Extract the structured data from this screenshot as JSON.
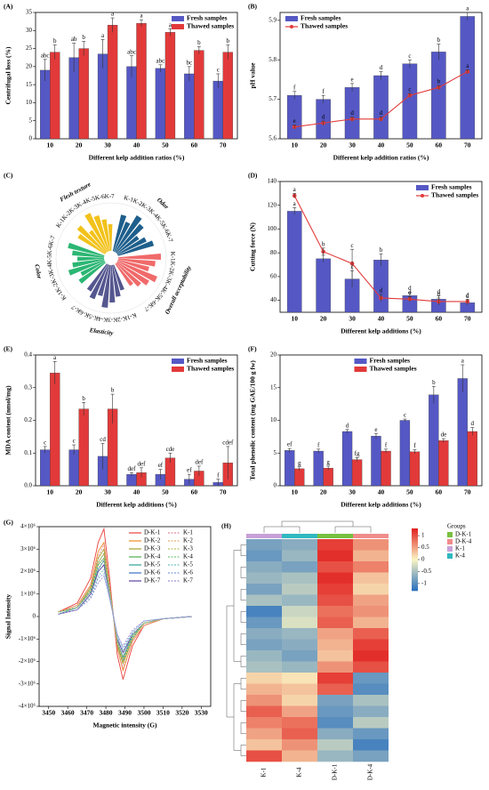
{
  "chart_data": [
    {
      "type": "bar",
      "panel_label": "(A)",
      "ylabel": "Centrifugal loss (%)",
      "xlabel": "Different kelp addition ratios (%)",
      "categories": [
        "10",
        "20",
        "30",
        "40",
        "50",
        "60",
        "70"
      ],
      "ylim": [
        0,
        35
      ],
      "yticks": [
        0,
        5,
        10,
        15,
        20,
        25,
        30,
        35
      ],
      "legend": "upper right",
      "series": [
        {
          "name": "Fresh samples",
          "color": "#5558c4",
          "values": [
            19,
            22.5,
            23.5,
            20,
            19.5,
            18,
            16
          ],
          "errors": [
            3,
            4,
            4,
            3,
            1,
            2,
            2
          ],
          "letters": [
            "abc",
            "ab",
            "a",
            "abc",
            "abc",
            "bc",
            "c"
          ]
        },
        {
          "name": "Thawed samples",
          "color": "#e23a3a",
          "values": [
            24,
            25,
            31.5,
            32,
            29.5,
            24.5,
            24
          ],
          "errors": [
            2,
            2,
            2,
            1,
            1,
            1,
            2
          ],
          "letters": [
            "b",
            "b",
            "a",
            "a",
            "a",
            "b",
            "b"
          ]
        }
      ]
    },
    {
      "type": "bar",
      "panel_label": "(B)",
      "ylabel": "pH value",
      "xlabel": "Different kelp addition ratios (%)",
      "categories": [
        "10",
        "20",
        "30",
        "40",
        "50",
        "60",
        "70"
      ],
      "ylim": [
        5.6,
        5.92
      ],
      "yticks": [
        5.6,
        5.7,
        5.8,
        5.9
      ],
      "legend": "upper left",
      "series": [
        {
          "name": "Fresh samples",
          "color": "#5558c4",
          "values": [
            5.71,
            5.7,
            5.73,
            5.76,
            5.79,
            5.82,
            5.91
          ],
          "errors": [
            0.01,
            0.01,
            0.01,
            0.01,
            0.01,
            0.02,
            0.01
          ],
          "letters": [
            "f",
            "f",
            "e",
            "d",
            "c",
            "b",
            "a"
          ]
        },
        {
          "name": "Thawed samples",
          "color": "#e23a3a",
          "type": "line",
          "values": [
            5.63,
            5.64,
            5.65,
            5.65,
            5.71,
            5.73,
            5.77
          ],
          "errors": [
            0.005,
            0.005,
            0.005,
            0.005,
            0.005,
            0.005,
            0.005
          ],
          "letters": [
            "e",
            "d",
            "d",
            "d",
            "c",
            "b",
            "a"
          ]
        }
      ]
    },
    {
      "type": "radial_bar",
      "panel_label": "(C)",
      "rlim": [
        0,
        9
      ],
      "groups": [
        {
          "name": "Flesh texture",
          "color": "#f2c21b",
          "categories": [
            "K-1",
            "K-2",
            "K-3",
            "K-4",
            "K-5",
            "K-6",
            "K-7"
          ],
          "values": [
            6,
            7,
            5,
            8,
            7,
            6,
            5
          ]
        },
        {
          "name": "Odor",
          "color": "#1e5f8c",
          "categories": [
            "K-1",
            "K-2",
            "K-3",
            "K-4",
            "K-5",
            "K-6",
            "K-7"
          ],
          "values": [
            7,
            6,
            8,
            7,
            5,
            6,
            7
          ]
        },
        {
          "name": "Overall acceptability",
          "color": "#f06a6a",
          "categories": [
            "K-1",
            "K-2",
            "K-3",
            "K-4",
            "K-5",
            "K-6",
            "K-7"
          ],
          "values": [
            8,
            7,
            6,
            8,
            7,
            6,
            5
          ]
        },
        {
          "name": "Elasticity",
          "color": "#55578f",
          "categories": [
            "K-1",
            "K-2",
            "K-3",
            "K-4",
            "K-5",
            "K-6",
            "K-7"
          ],
          "values": [
            5,
            6,
            7,
            8,
            6,
            7,
            6
          ]
        },
        {
          "name": "Color",
          "color": "#2bb673",
          "categories": [
            "K-1",
            "K-2",
            "K-3",
            "K-4",
            "K-5",
            "K-6",
            "K-7"
          ],
          "values": [
            6,
            5,
            7,
            6,
            5,
            6,
            7
          ]
        }
      ]
    },
    {
      "type": "bar",
      "panel_label": "(D)",
      "ylabel": "Cutting force (N)",
      "xlabel": "Different kelp additions (%)",
      "categories": [
        "10",
        "20",
        "30",
        "40",
        "50",
        "60",
        "70"
      ],
      "ylim": [
        30,
        140
      ],
      "yticks": [
        40,
        60,
        80,
        100,
        120,
        140
      ],
      "legend": "upper right",
      "series": [
        {
          "name": "Fresh samples",
          "color": "#5558c4",
          "values": [
            115,
            75,
            58,
            74,
            44,
            41,
            38
          ],
          "errors": [
            3,
            3,
            7,
            5,
            3,
            3,
            2
          ],
          "letters": [
            "a",
            "b",
            "c",
            "b",
            "d",
            "d",
            "d"
          ]
        },
        {
          "name": "Thawed samples",
          "color": "#e23a3a",
          "type": "line",
          "values": [
            128,
            81,
            71,
            42,
            41,
            39,
            39
          ],
          "errors": [
            2,
            3,
            12,
            3,
            2,
            3,
            2
          ],
          "letters": [
            "a",
            "b",
            "c",
            "d",
            "d",
            "d",
            "d"
          ]
        }
      ]
    },
    {
      "type": "bar",
      "panel_label": "(E)",
      "ylabel": "MDA content (nmol/mg)",
      "xlabel": "Different kelp additions (%)",
      "categories": [
        "10",
        "20",
        "30",
        "40",
        "50",
        "60",
        "70"
      ],
      "ylim": [
        0,
        0.4
      ],
      "yticks": [
        {
          "value": 0,
          "label": "0.0"
        },
        0.1,
        0.2,
        0.3,
        0.4
      ],
      "legend": "upper right",
      "series": [
        {
          "name": "Fresh samples",
          "color": "#5558c4",
          "values": [
            0.11,
            0.11,
            0.09,
            0.035,
            0.035,
            0.02,
            0.01
          ],
          "errors": [
            0.01,
            0.015,
            0.04,
            0.005,
            0.015,
            0.015,
            0.01
          ],
          "letters": [
            "c",
            "c",
            "cd",
            "def",
            "ef",
            "ef",
            "f"
          ]
        },
        {
          "name": "Thawed samples",
          "color": "#e23a3a",
          "values": [
            0.345,
            0.235,
            0.235,
            0.04,
            0.085,
            0.045,
            0.07
          ],
          "errors": [
            0.035,
            0.02,
            0.045,
            0.015,
            0.015,
            0.015,
            0.05
          ],
          "letters": [
            "a",
            "b",
            "b",
            "def",
            "cde",
            "def",
            "cdef"
          ]
        }
      ]
    },
    {
      "type": "bar",
      "panel_label": "(F)",
      "ylabel": "Total phenolic content (mg GAE/100 g fw)",
      "xlabel": "Different kelp additions (%)",
      "categories": [
        "10",
        "20",
        "30",
        "40",
        "50",
        "60",
        "70"
      ],
      "ylim": [
        0,
        20
      ],
      "yticks": [
        0,
        5,
        10,
        15,
        20
      ],
      "legend": "upper center",
      "series": [
        {
          "name": "Fresh samples",
          "color": "#5558c4",
          "values": [
            5.4,
            5.3,
            8.3,
            7.6,
            10,
            13.9,
            16.4
          ],
          "errors": [
            0.3,
            0.3,
            0.3,
            0.4,
            0.2,
            1.3,
            2.1
          ],
          "letters": [
            "ef",
            "f",
            "d",
            "e",
            "c",
            "b",
            "a"
          ]
        },
        {
          "name": "Thawed samples",
          "color": "#e23a3a",
          "values": [
            2.6,
            2.7,
            4.0,
            5.3,
            5.2,
            6.9,
            8.3
          ],
          "errors": [
            0.3,
            0.3,
            0.3,
            0.3,
            0.3,
            0.3,
            0.6
          ],
          "letters": [
            "g",
            "g",
            "fg",
            "f",
            "f",
            "de",
            "d"
          ]
        }
      ]
    },
    {
      "type": "line",
      "panel_label": "(G)",
      "ylabel": "Signal Intensity",
      "xlabel": "Magnetic intensity (G)",
      "x": [
        3455,
        3465,
        3472,
        3476,
        3479,
        3482,
        3486,
        3489,
        3494,
        3500,
        3510,
        3525
      ],
      "xlim": [
        3445,
        3535
      ],
      "xticks": [
        3450,
        3460,
        3470,
        3480,
        3490,
        3500,
        3510,
        3520,
        3530
      ],
      "ylim": [
        -4000000,
        4000000
      ],
      "yticks": [
        {
          "value": -4000000,
          "label": "-4×10⁶"
        },
        {
          "value": -3000000,
          "label": "-3×10⁶"
        },
        {
          "value": -2000000,
          "label": "-2×10⁶"
        },
        {
          "value": -1000000,
          "label": "-1×10⁶"
        },
        0,
        {
          "value": 1000000,
          "label": "1×10⁶"
        },
        {
          "value": 2000000,
          "label": "2×10⁶"
        },
        {
          "value": 3000000,
          "label": "3×10⁶"
        },
        {
          "value": 4000000,
          "label": "4×10⁶"
        }
      ],
      "legend": "upper right",
      "series": [
        {
          "name": "D-K-1",
          "color": "#e8413c",
          "linestyle": "solid",
          "values": [
            200000,
            600000,
            1700000,
            3300000,
            3900000,
            1700000,
            -1700000,
            -2800000,
            -1300000,
            -400000,
            -100000,
            0
          ]
        },
        {
          "name": "D-K-2",
          "color": "#f08a24",
          "linestyle": "solid",
          "values": [
            200000,
            500000,
            1400000,
            2900000,
            3300000,
            1400000,
            -1400000,
            -2400000,
            -1100000,
            -400000,
            -100000,
            0
          ]
        },
        {
          "name": "D-K-3",
          "color": "#a4a02a",
          "linestyle": "solid",
          "values": [
            200000,
            400000,
            1300000,
            2600000,
            3000000,
            1300000,
            -1300000,
            -2100000,
            -1000000,
            -300000,
            -100000,
            0
          ]
        },
        {
          "name": "D-K-4",
          "color": "#4caf50",
          "linestyle": "solid",
          "values": [
            200000,
            400000,
            1200000,
            2400000,
            2800000,
            1200000,
            -1200000,
            -2000000,
            -1000000,
            -300000,
            -100000,
            0
          ]
        },
        {
          "name": "D-K-5",
          "color": "#2aa198",
          "linestyle": "solid",
          "values": [
            200000,
            400000,
            1100000,
            2300000,
            2600000,
            1100000,
            -1100000,
            -1900000,
            -900000,
            -300000,
            -100000,
            0
          ]
        },
        {
          "name": "D-K-6",
          "color": "#3a6fc4",
          "linestyle": "solid",
          "values": [
            100000,
            400000,
            1100000,
            2100000,
            2500000,
            1100000,
            -1100000,
            -1800000,
            -800000,
            -300000,
            -100000,
            0
          ]
        },
        {
          "name": "D-K-7",
          "color": "#5b3fa0",
          "linestyle": "solid",
          "values": [
            100000,
            300000,
            1000000,
            2000000,
            2300000,
            1000000,
            -1000000,
            -1600000,
            -800000,
            -300000,
            -100000,
            0
          ]
        },
        {
          "name": "K-1",
          "color": "#e88a9a",
          "linestyle": "dashed",
          "values": [
            200000,
            500000,
            1400000,
            2700000,
            3200000,
            1400000,
            -1400000,
            -2300000,
            -1100000,
            -400000,
            -100000,
            0
          ]
        },
        {
          "name": "K-2",
          "color": "#e8b070",
          "linestyle": "dashed",
          "values": [
            200000,
            400000,
            1200000,
            2400000,
            2800000,
            1200000,
            -1200000,
            -2000000,
            -1000000,
            -300000,
            -100000,
            0
          ]
        },
        {
          "name": "K-3",
          "color": "#c0c060",
          "linestyle": "dashed",
          "values": [
            200000,
            400000,
            1100000,
            2300000,
            2600000,
            1100000,
            -1100000,
            -1900000,
            -900000,
            -300000,
            -100000,
            0
          ]
        },
        {
          "name": "K-4",
          "color": "#80c880",
          "linestyle": "dashed",
          "values": [
            100000,
            400000,
            1100000,
            2100000,
            2500000,
            1100000,
            -1100000,
            -1800000,
            -800000,
            -300000,
            -100000,
            0
          ]
        },
        {
          "name": "K-5",
          "color": "#70c0c0",
          "linestyle": "dashed",
          "values": [
            100000,
            300000,
            900000,
            1800000,
            2100000,
            900000,
            -900000,
            -1500000,
            -700000,
            -200000,
            -100000,
            0
          ]
        },
        {
          "name": "K-6",
          "color": "#80a0e0",
          "linestyle": "dashed",
          "values": [
            100000,
            300000,
            800000,
            1700000,
            1900000,
            800000,
            -800000,
            -1400000,
            -700000,
            -200000,
            -100000,
            0
          ]
        },
        {
          "name": "K-7",
          "color": "#a090d0",
          "linestyle": "dashed",
          "values": [
            100000,
            300000,
            800000,
            1500000,
            1800000,
            800000,
            -800000,
            -1300000,
            -600000,
            -200000,
            -100000,
            0
          ]
        }
      ]
    },
    {
      "type": "heatmap",
      "panel_label": "(H)",
      "columns": [
        "K-1",
        "K-4",
        "D-K-1",
        "D-K-4"
      ],
      "column_colors": [
        "#c8a0d8",
        "#30b8c0",
        "#78c040",
        "#f08c8c"
      ],
      "zlim": [
        -1.3,
        1.3
      ],
      "colorbar_ticks": [
        1,
        0.5,
        0,
        -0.5,
        -1
      ],
      "legend_title": "Groups",
      "groups": [
        {
          "name": "D-K-1",
          "color": "#78c040"
        },
        {
          "name": "D-K-4",
          "color": "#f08c8c"
        },
        {
          "name": "K-1",
          "color": "#c8a0d8"
        },
        {
          "name": "K-4",
          "color": "#30b8c0"
        }
      ],
      "values": [
        [
          -0.8,
          -0.7,
          1.1,
          0.6
        ],
        [
          -0.9,
          -0.6,
          1.2,
          0.4
        ],
        [
          -0.7,
          -0.8,
          1.0,
          0.7
        ],
        [
          -0.6,
          -0.5,
          1.2,
          0.3
        ],
        [
          -0.8,
          -0.4,
          1.1,
          0.2
        ],
        [
          -0.5,
          -0.6,
          1.0,
          0.5
        ],
        [
          -1.1,
          -0.3,
          0.8,
          0.6
        ],
        [
          -0.9,
          -0.2,
          0.9,
          0.4
        ],
        [
          -0.7,
          -0.6,
          0.5,
          0.9
        ],
        [
          -0.8,
          -0.7,
          0.4,
          1.1
        ],
        [
          -0.6,
          -0.8,
          0.3,
          1.2
        ],
        [
          -0.5,
          -0.6,
          0.6,
          1.0
        ],
        [
          0.2,
          0.1,
          1.1,
          -0.9
        ],
        [
          0.4,
          0.3,
          0.9,
          -1.0
        ],
        [
          0.6,
          0.2,
          -0.8,
          -0.5
        ],
        [
          0.9,
          0.5,
          -0.9,
          -0.7
        ],
        [
          0.7,
          0.8,
          -1.0,
          -0.4
        ],
        [
          0.5,
          0.9,
          -0.7,
          -0.9
        ],
        [
          0.3,
          0.6,
          -0.4,
          -1.1
        ],
        [
          1.0,
          0.4,
          -0.6,
          -0.8
        ]
      ]
    }
  ]
}
